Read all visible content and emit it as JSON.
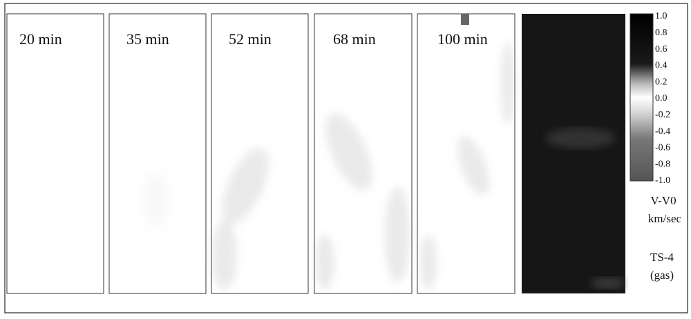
{
  "panels": [
    {
      "label": "20 min"
    },
    {
      "label": "35 min"
    },
    {
      "label": "52 min"
    },
    {
      "label": "68 min"
    },
    {
      "label": "100 min"
    }
  ],
  "colorbar": {
    "ticks": [
      "1.0",
      "0.8",
      "0.6",
      "0.4",
      "0.2",
      "0.0",
      "-0.2",
      "-0.4",
      "-0.6",
      "-0.8",
      "-1.0"
    ]
  },
  "units": {
    "quantity": "V-V0",
    "unit": "km/sec"
  },
  "sample": {
    "name": "TS-4",
    "phase": "(gas)"
  }
}
